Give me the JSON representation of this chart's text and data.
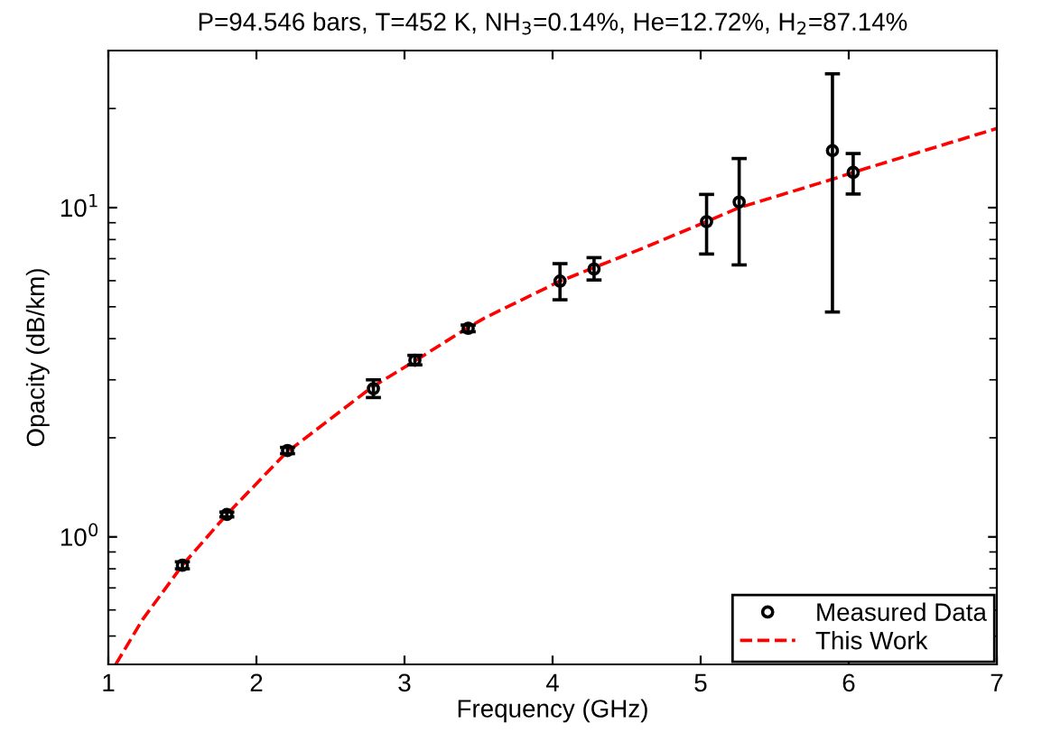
{
  "chart_data": {
    "type": "scatter",
    "title": "P=94.546 bars, T=452 K, NH$_{3}$=0.14%, He=12.72%, H$_{2}$=87.14%",
    "xlabel": "Frequency (GHz)",
    "ylabel": "Opacity (dB/km)",
    "series": [
      {
        "name": "Measured Data",
        "color": "#000000",
        "marker": "circle",
        "x": [
          1.5,
          1.8,
          2.21,
          2.79,
          3.07,
          3.43,
          4.05,
          4.28,
          5.04,
          5.26,
          5.89,
          6.03
        ],
        "values": [
          0.82,
          1.17,
          1.83,
          2.82,
          3.44,
          4.3,
          5.98,
          6.51,
          9.07,
          10.4,
          14.9,
          12.8
        ],
        "errors": [
          [
            0.8,
            0.84
          ],
          [
            1.15,
            1.19
          ],
          [
            1.79,
            1.87
          ],
          [
            2.65,
            3.0
          ],
          [
            3.33,
            3.56
          ],
          [
            4.2,
            4.4
          ],
          [
            5.25,
            6.76
          ],
          [
            6.03,
            7.05
          ],
          [
            7.23,
            10.97
          ],
          [
            6.7,
            14.1
          ],
          [
            4.82,
            25.5
          ],
          [
            11.0,
            14.6
          ]
        ]
      },
      {
        "name": "This Work",
        "type": "line",
        "color": "#ff0000",
        "line_style": "dashed",
        "marker": "none",
        "x": [
          1.05,
          1.23,
          1.5,
          1.8,
          2.2,
          2.78,
          3.06,
          3.42,
          3.54,
          4.05,
          4.6,
          5.04,
          5.26,
          5.89,
          6.03,
          7.0
        ],
        "values": [
          0.41,
          0.56,
          0.82,
          1.17,
          1.8,
          2.85,
          3.4,
          4.3,
          4.62,
          5.98,
          7.5,
          9.07,
          10.0,
          12.2,
          12.8,
          17.4
        ]
      }
    ],
    "log": "y",
    "xlim": [
      1,
      7
    ],
    "ylim": [
      0.41,
      30
    ],
    "xticks": [
      1,
      2,
      3,
      4,
      5,
      6,
      7
    ],
    "yticks": [
      {
        "value": 1,
        "label": "10$^{0}$"
      },
      {
        "value": 10,
        "label": "10$^{1}$"
      }
    ],
    "grid": false,
    "legend": "bottom right"
  }
}
